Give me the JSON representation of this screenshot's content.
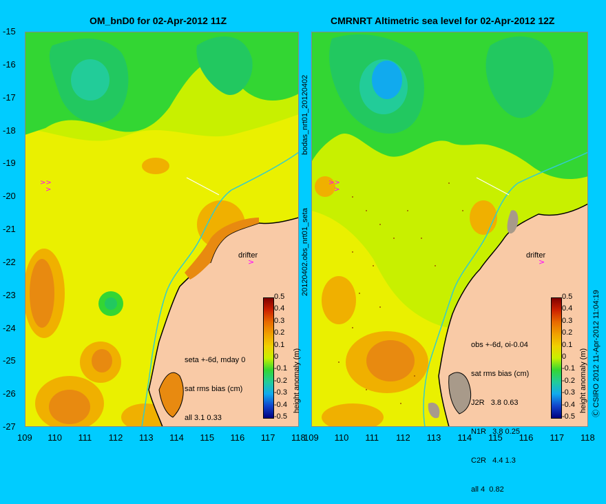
{
  "panels": [
    {
      "title": "OM_bnD0 for 02-Apr-2012 11Z",
      "info_lines": [
        "seta +-6d, mday 0",
        "sat rms bias (cm)",
        "all 3.1 0.33"
      ]
    },
    {
      "title": "CMRNRT Altimetric sea level  for 02-Apr-2012 12Z",
      "info_lines": [
        "obs +-6d, oi-0.04",
        "sat rms bias (cm)",
        "J2R   3.8 0.63",
        "N1R   3.8 0.25",
        "C2R   4.4 1.3",
        "all 4  0.82"
      ]
    }
  ],
  "y_ticks": [
    "-15",
    "-16",
    "-17",
    "-18",
    "-19",
    "-20",
    "-21",
    "-22",
    "-23",
    "-24",
    "-25",
    "-26",
    "-27"
  ],
  "x_ticks": [
    "109",
    "110",
    "111",
    "112",
    "113",
    "114",
    "115",
    "116",
    "117",
    "118"
  ],
  "middle_labels": {
    "top": "bodas_nrt01_20120402",
    "bottom": "20120402.obs_nrt01_seta"
  },
  "drifter_label": "drifter",
  "colorbar": {
    "label": "height anomaly (m)",
    "ticks": [
      "0.5",
      "0.4",
      "0.3",
      "0.2",
      "0.1",
      "0",
      "-0.1",
      "-0.2",
      "-0.3",
      "-0.4",
      "-0.5"
    ]
  },
  "credit": "Ⓒ CSIRO 2012    11-Apr-2012 11:04:19",
  "colors": {
    "background": "#00ccff",
    "land": "#f9caa6",
    "coast": "#000000"
  }
}
